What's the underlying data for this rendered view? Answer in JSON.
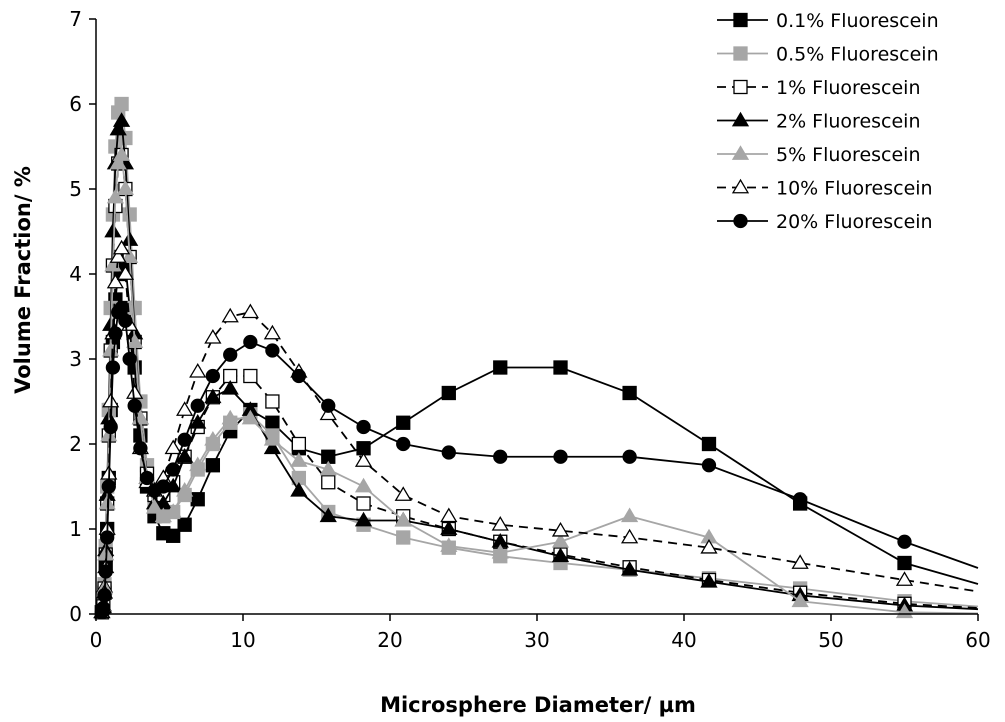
{
  "chart_data": {
    "type": "line",
    "xlabel": "Microsphere Diameter/ µm",
    "ylabel": "Volume Fraction/ %",
    "xlim": [
      0,
      60
    ],
    "ylim": [
      0,
      7
    ],
    "xticks": [
      0,
      10,
      20,
      30,
      40,
      50,
      60
    ],
    "yticks": [
      0,
      1,
      2,
      3,
      4,
      5,
      6,
      7
    ],
    "grid": false,
    "legend_position": "top-right",
    "x": [
      0.4,
      0.5,
      0.58,
      0.66,
      0.76,
      0.87,
      1.0,
      1.15,
      1.32,
      1.51,
      1.74,
      2.0,
      2.29,
      2.63,
      3.02,
      3.47,
      3.98,
      4.58,
      5.25,
      6.03,
      6.92,
      7.95,
      9.13,
      10.5,
      12.0,
      13.8,
      15.8,
      18.2,
      20.9,
      24.0,
      27.5,
      31.6,
      36.3,
      41.7,
      47.9,
      55.0,
      63.1
    ],
    "series": [
      {
        "name": "0.1% Fluorescein",
        "color": "#000000",
        "marker": "square-filled",
        "dash": "solid",
        "values": [
          0.02,
          0.08,
          0.25,
          0.6,
          1.0,
          1.6,
          2.4,
          3.2,
          3.7,
          4.0,
          4.2,
          4.1,
          3.6,
          2.9,
          2.1,
          1.5,
          1.15,
          0.95,
          0.92,
          1.05,
          1.35,
          1.75,
          2.15,
          2.4,
          2.25,
          1.95,
          1.85,
          1.95,
          2.25,
          2.6,
          2.9,
          2.9,
          2.6,
          2.0,
          1.3,
          0.6,
          0.2
        ]
      },
      {
        "name": "0.5% Fluorescein",
        "color": "#a6a6a6",
        "marker": "square-filled",
        "dash": "solid",
        "values": [
          0.02,
          0.1,
          0.35,
          0.8,
          1.5,
          2.4,
          3.6,
          4.7,
          5.5,
          5.9,
          6.0,
          5.6,
          4.7,
          3.6,
          2.5,
          1.75,
          1.3,
          1.15,
          1.2,
          1.4,
          1.7,
          2.0,
          2.25,
          2.35,
          2.1,
          1.6,
          1.2,
          1.05,
          0.9,
          0.78,
          0.68,
          0.6,
          0.52,
          0.42,
          0.3,
          0.15,
          0.05
        ]
      },
      {
        "name": "1% Fluorescein",
        "color": "#000000",
        "marker": "square-open",
        "dash": "dashed",
        "values": [
          0.02,
          0.09,
          0.3,
          0.7,
          1.3,
          2.1,
          3.1,
          4.1,
          4.8,
          5.3,
          5.4,
          5.0,
          4.2,
          3.2,
          2.3,
          1.65,
          1.4,
          1.4,
          1.55,
          1.85,
          2.2,
          2.55,
          2.8,
          2.8,
          2.5,
          2.0,
          1.55,
          1.3,
          1.15,
          1.0,
          0.85,
          0.7,
          0.55,
          0.4,
          0.25,
          0.12,
          0.04
        ]
      },
      {
        "name": "2% Fluorescein",
        "color": "#000000",
        "marker": "triangle-filled",
        "dash": "solid",
        "values": [
          0.02,
          0.1,
          0.32,
          0.75,
          1.4,
          2.3,
          3.4,
          4.5,
          5.3,
          5.7,
          5.8,
          5.3,
          4.4,
          3.3,
          2.3,
          1.6,
          1.3,
          1.3,
          1.5,
          1.85,
          2.25,
          2.55,
          2.65,
          2.4,
          1.95,
          1.45,
          1.15,
          1.1,
          1.1,
          1.0,
          0.85,
          0.68,
          0.52,
          0.38,
          0.22,
          0.1,
          0.03
        ]
      },
      {
        "name": "5% Fluorescein",
        "color": "#a6a6a6",
        "marker": "triangle-filled",
        "dash": "solid",
        "values": [
          0.02,
          0.09,
          0.3,
          0.7,
          1.3,
          2.1,
          3.1,
          4.1,
          4.9,
          5.3,
          5.4,
          5.0,
          4.2,
          3.2,
          2.3,
          1.6,
          1.25,
          1.15,
          1.2,
          1.45,
          1.75,
          2.05,
          2.3,
          2.3,
          2.05,
          1.8,
          1.7,
          1.5,
          1.1,
          0.8,
          0.72,
          0.85,
          1.15,
          0.9,
          0.15,
          0.02,
          0.0
        ]
      },
      {
        "name": "10% Fluorescein",
        "color": "#000000",
        "marker": "triangle-open",
        "dash": "dashed",
        "values": [
          0.02,
          0.08,
          0.25,
          0.55,
          1.0,
          1.65,
          2.5,
          3.3,
          3.9,
          4.2,
          4.3,
          4.0,
          3.4,
          2.6,
          1.95,
          1.55,
          1.45,
          1.6,
          1.95,
          2.4,
          2.85,
          3.25,
          3.5,
          3.55,
          3.3,
          2.85,
          2.35,
          1.8,
          1.4,
          1.15,
          1.05,
          0.98,
          0.9,
          0.78,
          0.6,
          0.4,
          0.18
        ]
      },
      {
        "name": "20% Fluorescein",
        "color": "#000000",
        "marker": "circle-filled",
        "dash": "solid",
        "values": [
          0.02,
          0.07,
          0.22,
          0.5,
          0.9,
          1.5,
          2.2,
          2.9,
          3.3,
          3.55,
          3.6,
          3.45,
          3.0,
          2.45,
          1.95,
          1.6,
          1.45,
          1.5,
          1.7,
          2.05,
          2.45,
          2.8,
          3.05,
          3.2,
          3.1,
          2.8,
          2.45,
          2.2,
          2.0,
          1.9,
          1.85,
          1.85,
          1.85,
          1.75,
          1.35,
          0.85,
          0.35
        ]
      }
    ]
  }
}
